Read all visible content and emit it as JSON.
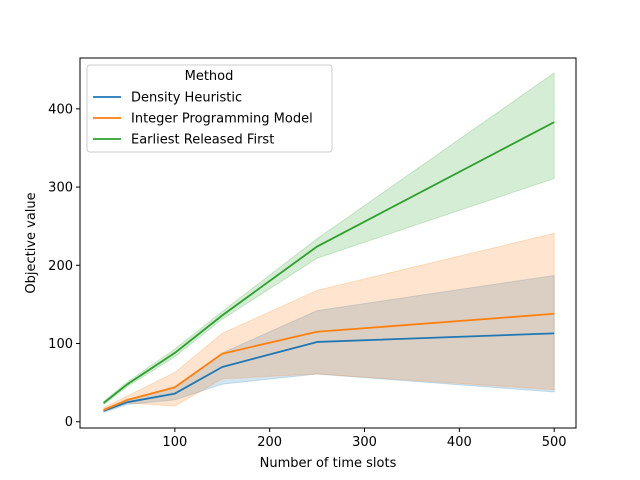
{
  "chart_data": {
    "type": "line",
    "xlabel": "Number of time slots",
    "ylabel": "Objective value",
    "xlim": [
      0,
      523
    ],
    "ylim": [
      -8,
      465
    ],
    "xticks": [
      100,
      200,
      300,
      400,
      500
    ],
    "yticks": [
      0,
      100,
      200,
      300,
      400
    ],
    "grid": false,
    "legend": {
      "title": "Method",
      "placement": "top-left"
    },
    "series": [
      {
        "name": "Density Heuristic",
        "color": "#1f77b4",
        "x": [
          25,
          50,
          100,
          150,
          250,
          500
        ],
        "y": [
          14,
          25,
          36,
          70,
          102,
          113
        ],
        "lower": [
          12,
          22,
          28,
          48,
          61,
          38
        ],
        "upper": [
          16,
          28,
          45,
          88,
          142,
          187
        ]
      },
      {
        "name": "Integer Programming Model",
        "color": "#ff7f0e",
        "x": [
          25,
          50,
          100,
          150,
          250,
          500
        ],
        "y": [
          15,
          28,
          44,
          87,
          115,
          138
        ],
        "lower": [
          13,
          24,
          20,
          55,
          61,
          41
        ],
        "upper": [
          18,
          33,
          63,
          113,
          168,
          241
        ]
      },
      {
        "name": "Earliest Released First",
        "color": "#2ca02c",
        "x": [
          25,
          50,
          100,
          150,
          250,
          500
        ],
        "y": [
          24,
          48,
          88,
          136,
          224,
          383
        ],
        "lower": [
          22,
          45,
          83,
          131,
          209,
          311
        ],
        "upper": [
          26,
          51,
          93,
          141,
          234,
          446
        ]
      }
    ]
  }
}
